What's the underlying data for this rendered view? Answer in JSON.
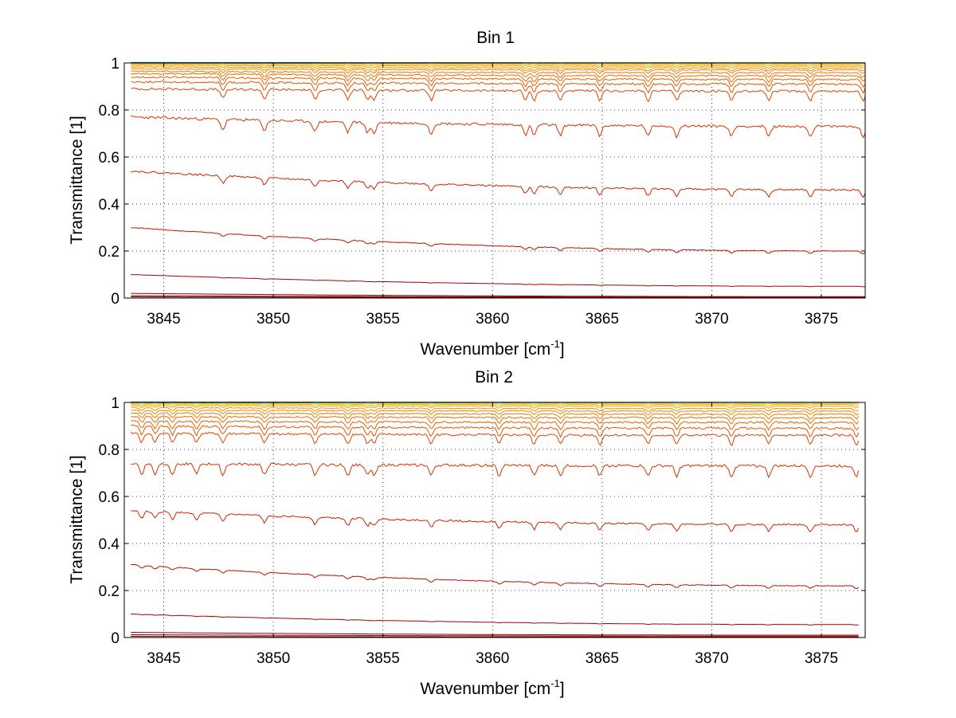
{
  "chart_data": [
    {
      "type": "line",
      "title": "Bin 1",
      "xlabel": "Wavenumber [cm",
      "xlabel_sup": "-1",
      "xlabel_end": "]",
      "ylabel": "Transmittance [1]",
      "xlim": [
        3843.2,
        3877
      ],
      "ylim": [
        0,
        1
      ],
      "xticks": [
        3845,
        3850,
        3855,
        3860,
        3865,
        3870,
        3875
      ],
      "yticks": [
        0,
        0.2,
        0.4,
        0.6,
        0.8,
        1
      ],
      "ytick_labels": [
        "0",
        "0.2",
        "0.4",
        "0.6",
        "0.8",
        "1"
      ],
      "grid": "dotted",
      "x_range": [
        3843.5,
        3877
      ],
      "features": [
        3847.7,
        3849.6,
        3851.9,
        3853.4,
        3854.3,
        3854.6,
        3857.2,
        3861.5,
        3861.9,
        3863.1,
        3864.9,
        3867.1,
        3868.4,
        3870.9,
        3872.6,
        3874.5,
        3876.9
      ],
      "series": [
        {
          "color": "#7f0000",
          "start": 0.005,
          "end": 0.002,
          "depth": 0.0
        },
        {
          "color": "#8a0000",
          "start": 0.01,
          "end": 0.004,
          "depth": 0.0
        },
        {
          "color": "#990000",
          "start": 0.02,
          "end": 0.006,
          "depth": 0.0
        },
        {
          "color": "#aa0000",
          "start": 0.1,
          "end": 0.05,
          "depth": 0.002
        },
        {
          "color": "#bb1100",
          "start": 0.3,
          "end": 0.2,
          "depth": 0.012
        },
        {
          "color": "#cc2200",
          "start": 0.54,
          "end": 0.46,
          "depth": 0.03
        },
        {
          "color": "#d43300",
          "start": 0.77,
          "end": 0.73,
          "depth": 0.045
        },
        {
          "color": "#dd4400",
          "start": 0.89,
          "end": 0.88,
          "depth": 0.04
        },
        {
          "color": "#e25500",
          "start": 0.92,
          "end": 0.91,
          "depth": 0.035
        },
        {
          "color": "#e66000",
          "start": 0.94,
          "end": 0.93,
          "depth": 0.03
        },
        {
          "color": "#ea6c00",
          "start": 0.955,
          "end": 0.945,
          "depth": 0.025
        },
        {
          "color": "#ee7800",
          "start": 0.965,
          "end": 0.958,
          "depth": 0.02
        },
        {
          "color": "#f08400",
          "start": 0.975,
          "end": 0.97,
          "depth": 0.015
        },
        {
          "color": "#f29000",
          "start": 0.983,
          "end": 0.978,
          "depth": 0.012
        },
        {
          "color": "#f59c00",
          "start": 0.99,
          "end": 0.986,
          "depth": 0.008
        },
        {
          "color": "#f8aa00",
          "start": 0.995,
          "end": 0.992,
          "depth": 0.005
        },
        {
          "color": "#c8c800",
          "start": 0.998,
          "end": 0.997,
          "depth": 0.002
        },
        {
          "color": "#00bbbb",
          "start": 1.0,
          "end": 1.0,
          "depth": 0.0
        },
        {
          "color": "#0066cc",
          "start": 1.002,
          "end": 1.001,
          "depth": 0.0
        }
      ]
    },
    {
      "type": "line",
      "title": "Bin 2",
      "xlabel": "Wavenumber [cm",
      "xlabel_sup": "-1",
      "xlabel_end": "]",
      "ylabel": "Transmittance [1]",
      "xlim": [
        3843.2,
        3877
      ],
      "ylim": [
        0,
        1
      ],
      "xticks": [
        3845,
        3850,
        3855,
        3860,
        3865,
        3870,
        3875
      ],
      "yticks": [
        0,
        0.2,
        0.4,
        0.6,
        0.8,
        1
      ],
      "ytick_labels": [
        "0",
        "0.2",
        "0.4",
        "0.6",
        "0.8",
        "1"
      ],
      "grid": "dotted",
      "x_range": [
        3843.5,
        3876.7
      ],
      "features": [
        3844.0,
        3844.6,
        3845.4,
        3846.5,
        3847.7,
        3849.6,
        3851.9,
        3853.4,
        3854.3,
        3854.6,
        3857.2,
        3860.3,
        3861.9,
        3863.1,
        3864.9,
        3867.1,
        3868.4,
        3870.9,
        3872.6,
        3874.5,
        3876.6
      ],
      "series": [
        {
          "color": "#7f0000",
          "start": 0.005,
          "end": 0.002,
          "depth": 0.0
        },
        {
          "color": "#8a0000",
          "start": 0.012,
          "end": 0.006,
          "depth": 0.0
        },
        {
          "color": "#990000",
          "start": 0.022,
          "end": 0.01,
          "depth": 0.0
        },
        {
          "color": "#aa0000",
          "start": 0.1,
          "end": 0.055,
          "depth": 0.002
        },
        {
          "color": "#bb1100",
          "start": 0.31,
          "end": 0.22,
          "depth": 0.012
        },
        {
          "color": "#cc2200",
          "start": 0.54,
          "end": 0.48,
          "depth": 0.03
        },
        {
          "color": "#d43300",
          "start": 0.74,
          "end": 0.73,
          "depth": 0.045
        },
        {
          "color": "#dd4400",
          "start": 0.87,
          "end": 0.86,
          "depth": 0.04
        },
        {
          "color": "#e25500",
          "start": 0.9,
          "end": 0.89,
          "depth": 0.035
        },
        {
          "color": "#e66000",
          "start": 0.92,
          "end": 0.915,
          "depth": 0.03
        },
        {
          "color": "#ea6c00",
          "start": 0.94,
          "end": 0.935,
          "depth": 0.025
        },
        {
          "color": "#ee7800",
          "start": 0.955,
          "end": 0.95,
          "depth": 0.02
        },
        {
          "color": "#f08400",
          "start": 0.967,
          "end": 0.963,
          "depth": 0.015
        },
        {
          "color": "#f29000",
          "start": 0.978,
          "end": 0.974,
          "depth": 0.012
        },
        {
          "color": "#f59c00",
          "start": 0.987,
          "end": 0.984,
          "depth": 0.008
        },
        {
          "color": "#f8aa00",
          "start": 0.993,
          "end": 0.991,
          "depth": 0.005
        },
        {
          "color": "#c8c800",
          "start": 0.997,
          "end": 0.996,
          "depth": 0.002
        },
        {
          "color": "#00bbbb",
          "start": 1.0,
          "end": 1.0,
          "depth": 0.0
        },
        {
          "color": "#0066cc",
          "start": 1.002,
          "end": 1.001,
          "depth": 0.0
        }
      ]
    }
  ]
}
